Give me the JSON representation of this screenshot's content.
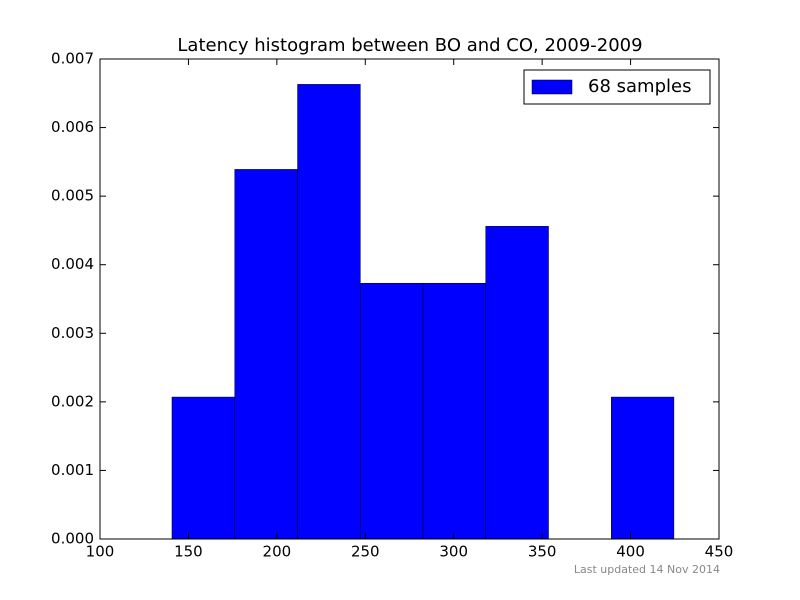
{
  "chart_data": {
    "type": "histogram",
    "title": "Latency histogram between BO and CO, 2009-2009",
    "bins": [
      140.7,
      176.2,
      211.7,
      247.2,
      282.6,
      318.1,
      353.6,
      389.1,
      424.5
    ],
    "series": [
      {
        "name": "68 samples",
        "color": "#0000ff",
        "values": [
          0.00207,
          0.00539,
          0.00663,
          0.00373,
          0.00373,
          0.00456,
          0,
          0.00207
        ]
      }
    ],
    "xlim": [
      100,
      450
    ],
    "xticks": [
      100,
      150,
      200,
      250,
      300,
      350,
      400,
      450
    ],
    "ylim": [
      0,
      0.007
    ],
    "yticks": [
      {
        "value": 0,
        "label": "0.000"
      },
      {
        "value": 0.001,
        "label": "0.001"
      },
      {
        "value": 0.002,
        "label": "0.002"
      },
      {
        "value": 0.003,
        "label": "0.003"
      },
      {
        "value": 0.004,
        "label": "0.004"
      },
      {
        "value": 0.005,
        "label": "0.005"
      },
      {
        "value": 0.006,
        "label": "0.006"
      },
      {
        "value": 0.007,
        "label": "0.007"
      }
    ],
    "legend": "upper right",
    "footer": "Last updated 14 Nov 2014"
  }
}
